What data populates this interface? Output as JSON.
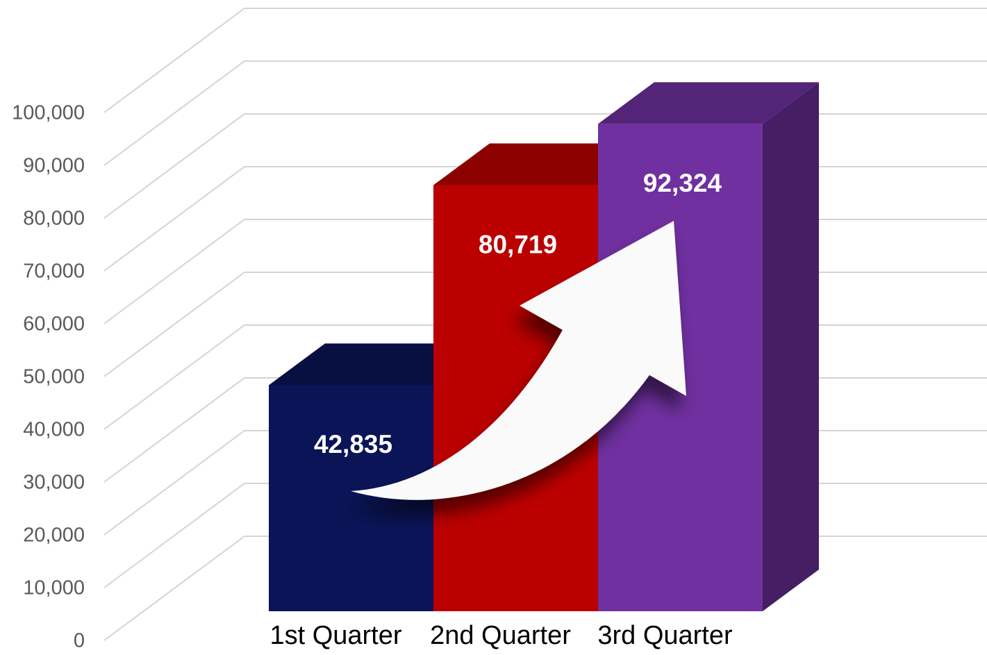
{
  "chart_data": {
    "type": "bar3d",
    "categories": [
      "1st Quarter",
      "2nd Quarter",
      "3rd Quarter"
    ],
    "values": [
      42835,
      80719,
      92324
    ],
    "value_labels": [
      "42,835",
      "80,719",
      "92,324"
    ],
    "colors": [
      "#0b1457",
      "#bb0000",
      "#7030a0"
    ],
    "ylim": [
      0,
      120000
    ],
    "yticks": [
      0,
      {
        "value": 10000,
        "label": "10,000"
      },
      {
        "value": 20000,
        "label": "20,000"
      },
      {
        "value": 30000,
        "label": "30,000"
      },
      {
        "value": 40000,
        "label": "40,000"
      },
      {
        "value": 50000,
        "label": "50,000"
      },
      {
        "value": 60000,
        "label": "60,000"
      },
      {
        "value": 70000,
        "label": "70,000"
      },
      {
        "value": 80000,
        "label": "80,000"
      },
      {
        "value": 90000,
        "label": "90,000"
      },
      {
        "value": 100000,
        "label": "100,000"
      }
    ],
    "grid": true
  }
}
